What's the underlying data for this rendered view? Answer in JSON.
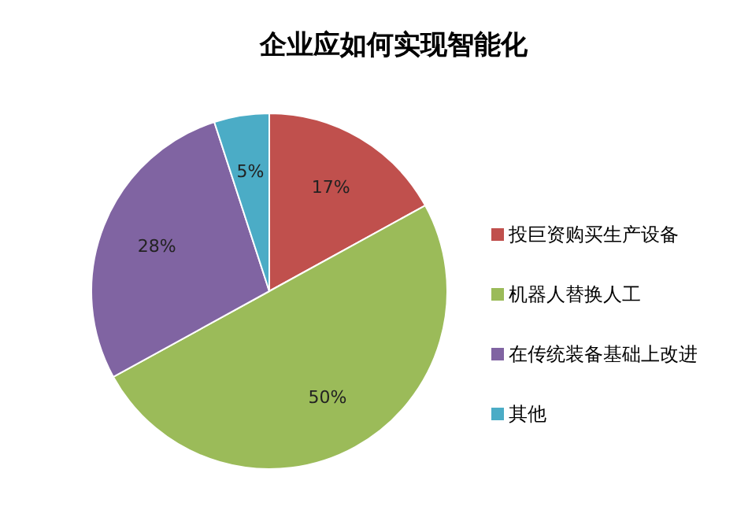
{
  "chart_data": {
    "type": "pie",
    "title": "企业应如何实现智能化",
    "categories": [
      "投巨资购买生产设备",
      "机器人替换人工",
      "在传统装备基础上改进",
      "其他"
    ],
    "values": [
      17,
      50,
      28,
      5
    ],
    "colors": [
      "#c0504d",
      "#9bbb59",
      "#8064a2",
      "#4bacc6"
    ],
    "value_labels": [
      "17%",
      "50%",
      "28%",
      "5%"
    ],
    "legend": "right"
  }
}
